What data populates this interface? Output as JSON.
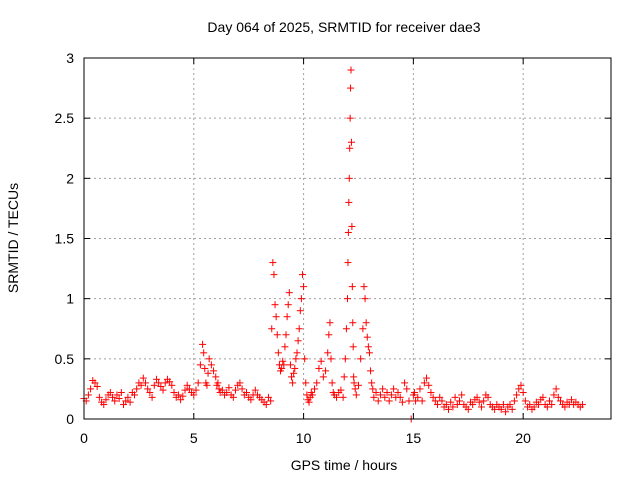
{
  "chart_data": {
    "type": "scatter",
    "title": "Day 064 of 2025, SRMTID for receiver dae3",
    "xlabel": "GPS time / hours",
    "ylabel": "SRMTID / TECUs",
    "xlim": [
      0,
      24
    ],
    "ylim": [
      0,
      3
    ],
    "xticks": [
      0,
      5,
      10,
      15,
      20
    ],
    "xtick_labels": [
      "0",
      "5",
      "10",
      "15",
      "20"
    ],
    "yticks": [
      0,
      0.5,
      1,
      1.5,
      2,
      2.5,
      3
    ],
    "ytick_labels": [
      "0",
      "0.5",
      "1",
      "1.5",
      "2",
      "2.5",
      "3"
    ],
    "grid": true,
    "marker": "+",
    "color": "#ff0000",
    "series": [
      {
        "name": "dae3",
        "x": [
          0.0,
          0.1,
          0.2,
          0.3,
          0.4,
          0.5,
          0.6,
          0.7,
          0.8,
          0.9,
          1.0,
          1.1,
          1.2,
          1.3,
          1.4,
          1.5,
          1.6,
          1.7,
          1.8,
          1.9,
          2.0,
          2.1,
          2.2,
          2.3,
          2.4,
          2.5,
          2.6,
          2.7,
          2.8,
          2.9,
          3.0,
          3.1,
          3.2,
          3.3,
          3.4,
          3.5,
          3.6,
          3.7,
          3.8,
          3.9,
          4.0,
          4.1,
          4.2,
          4.3,
          4.4,
          4.5,
          4.6,
          4.7,
          4.8,
          4.9,
          5.0,
          5.1,
          5.2,
          5.3,
          5.4,
          5.45,
          5.5,
          5.55,
          5.6,
          5.65,
          5.7,
          5.8,
          5.9,
          6.0,
          6.05,
          6.1,
          6.15,
          6.2,
          6.3,
          6.4,
          6.5,
          6.6,
          6.7,
          6.8,
          6.9,
          7.0,
          7.1,
          7.2,
          7.3,
          7.4,
          7.5,
          7.6,
          7.7,
          7.8,
          7.9,
          8.0,
          8.1,
          8.2,
          8.3,
          8.4,
          8.5,
          8.55,
          8.6,
          8.65,
          8.7,
          8.75,
          8.8,
          8.85,
          8.9,
          8.95,
          9.0,
          9.05,
          9.1,
          9.15,
          9.2,
          9.25,
          9.3,
          9.35,
          9.4,
          9.45,
          9.5,
          9.55,
          9.6,
          9.65,
          9.7,
          9.75,
          9.8,
          9.85,
          9.9,
          9.95,
          10.0,
          10.05,
          10.1,
          10.15,
          10.2,
          10.25,
          10.3,
          10.35,
          10.4,
          10.5,
          10.6,
          10.7,
          10.8,
          10.9,
          11.0,
          11.1,
          11.15,
          11.2,
          11.25,
          11.3,
          11.35,
          11.4,
          11.5,
          11.6,
          11.7,
          11.8,
          11.85,
          11.9,
          11.95,
          12.0,
          12.02,
          12.04,
          12.06,
          12.08,
          12.1,
          12.12,
          12.14,
          12.16,
          12.18,
          12.2,
          12.22,
          12.24,
          12.26,
          12.28,
          12.3,
          12.35,
          12.4,
          12.5,
          12.6,
          12.7,
          12.75,
          12.8,
          12.85,
          12.9,
          12.95,
          13.0,
          13.05,
          13.1,
          13.15,
          13.2,
          13.3,
          13.4,
          13.5,
          13.6,
          13.7,
          13.8,
          13.9,
          14.0,
          14.1,
          14.2,
          14.3,
          14.4,
          14.5,
          14.6,
          14.7,
          14.8,
          14.9,
          15.0,
          15.05,
          15.1,
          15.2,
          15.3,
          15.4,
          15.5,
          15.6,
          15.7,
          15.8,
          15.9,
          16.0,
          16.1,
          16.2,
          16.3,
          16.4,
          16.5,
          16.6,
          16.7,
          16.8,
          16.9,
          17.0,
          17.1,
          17.2,
          17.3,
          17.4,
          17.5,
          17.6,
          17.7,
          17.8,
          17.9,
          18.0,
          18.1,
          18.2,
          18.3,
          18.4,
          18.5,
          18.6,
          18.7,
          18.8,
          18.9,
          19.0,
          19.1,
          19.2,
          19.3,
          19.4,
          19.5,
          19.6,
          19.7,
          19.8,
          19.9,
          20.0,
          20.1,
          20.2,
          20.3,
          20.4,
          20.5,
          20.6,
          20.7,
          20.8,
          20.9,
          21.0,
          21.1,
          21.2,
          21.3,
          21.4,
          21.5,
          21.6,
          21.7,
          21.8,
          21.9,
          22.0,
          22.1,
          22.2,
          22.3,
          22.4,
          22.5,
          22.6,
          22.7
        ],
        "y": [
          0.17,
          0.15,
          0.2,
          0.25,
          0.32,
          0.3,
          0.27,
          0.18,
          0.14,
          0.12,
          0.16,
          0.2,
          0.22,
          0.18,
          0.15,
          0.2,
          0.17,
          0.22,
          0.12,
          0.15,
          0.18,
          0.14,
          0.22,
          0.2,
          0.25,
          0.3,
          0.28,
          0.34,
          0.3,
          0.25,
          0.22,
          0.18,
          0.28,
          0.33,
          0.3,
          0.27,
          0.24,
          0.3,
          0.33,
          0.31,
          0.28,
          0.22,
          0.18,
          0.2,
          0.16,
          0.19,
          0.24,
          0.28,
          0.25,
          0.22,
          0.2,
          0.24,
          0.3,
          0.45,
          0.62,
          0.55,
          0.42,
          0.3,
          0.28,
          0.38,
          0.5,
          0.45,
          0.4,
          0.35,
          0.28,
          0.3,
          0.25,
          0.22,
          0.24,
          0.2,
          0.22,
          0.26,
          0.2,
          0.18,
          0.24,
          0.28,
          0.3,
          0.25,
          0.2,
          0.22,
          0.18,
          0.16,
          0.2,
          0.24,
          0.2,
          0.18,
          0.16,
          0.14,
          0.12,
          0.18,
          0.15,
          0.75,
          1.3,
          1.2,
          0.95,
          0.85,
          0.7,
          0.55,
          0.45,
          0.4,
          0.42,
          0.48,
          0.45,
          0.6,
          0.7,
          0.85,
          0.95,
          1.05,
          0.45,
          0.35,
          0.3,
          0.38,
          0.42,
          0.5,
          0.55,
          0.65,
          0.75,
          0.9,
          1.0,
          1.2,
          1.1,
          0.5,
          0.3,
          0.2,
          0.16,
          0.14,
          0.18,
          0.22,
          0.2,
          0.25,
          0.3,
          0.42,
          0.48,
          0.35,
          0.4,
          0.55,
          0.7,
          0.8,
          0.5,
          0.3,
          0.22,
          0.2,
          0.18,
          0.22,
          0.24,
          0.18,
          0.35,
          0.5,
          0.75,
          1.0,
          1.3,
          1.55,
          1.8,
          2.0,
          2.25,
          2.5,
          2.75,
          2.9,
          2.3,
          1.6,
          1.1,
          0.8,
          0.6,
          0.35,
          0.3,
          0.25,
          0.2,
          0.28,
          0.5,
          0.75,
          1.1,
          1.0,
          0.8,
          0.68,
          0.6,
          0.55,
          0.4,
          0.3,
          0.25,
          0.18,
          0.22,
          0.15,
          0.2,
          0.25,
          0.18,
          0.22,
          0.15,
          0.2,
          0.25,
          0.18,
          0.22,
          0.18,
          0.14,
          0.3,
          0.25,
          0.15,
          0.0,
          0.2,
          0.22,
          0.15,
          0.18,
          0.25,
          0.15,
          0.3,
          0.34,
          0.28,
          0.22,
          0.18,
          0.15,
          0.12,
          0.18,
          0.15,
          0.1,
          0.12,
          0.08,
          0.14,
          0.1,
          0.18,
          0.12,
          0.15,
          0.2,
          0.12,
          0.1,
          0.08,
          0.14,
          0.12,
          0.16,
          0.18,
          0.14,
          0.1,
          0.15,
          0.2,
          0.18,
          0.12,
          0.1,
          0.08,
          0.12,
          0.1,
          0.08,
          0.12,
          0.06,
          0.1,
          0.12,
          0.08,
          0.15,
          0.2,
          0.25,
          0.28,
          0.22,
          0.15,
          0.1,
          0.12,
          0.08,
          0.1,
          0.14,
          0.12,
          0.16,
          0.18,
          0.12,
          0.1,
          0.15,
          0.12,
          0.2,
          0.25,
          0.18,
          0.15,
          0.12,
          0.1,
          0.14,
          0.12,
          0.16,
          0.12,
          0.14,
          0.12,
          0.1,
          0.12
        ]
      }
    ]
  }
}
